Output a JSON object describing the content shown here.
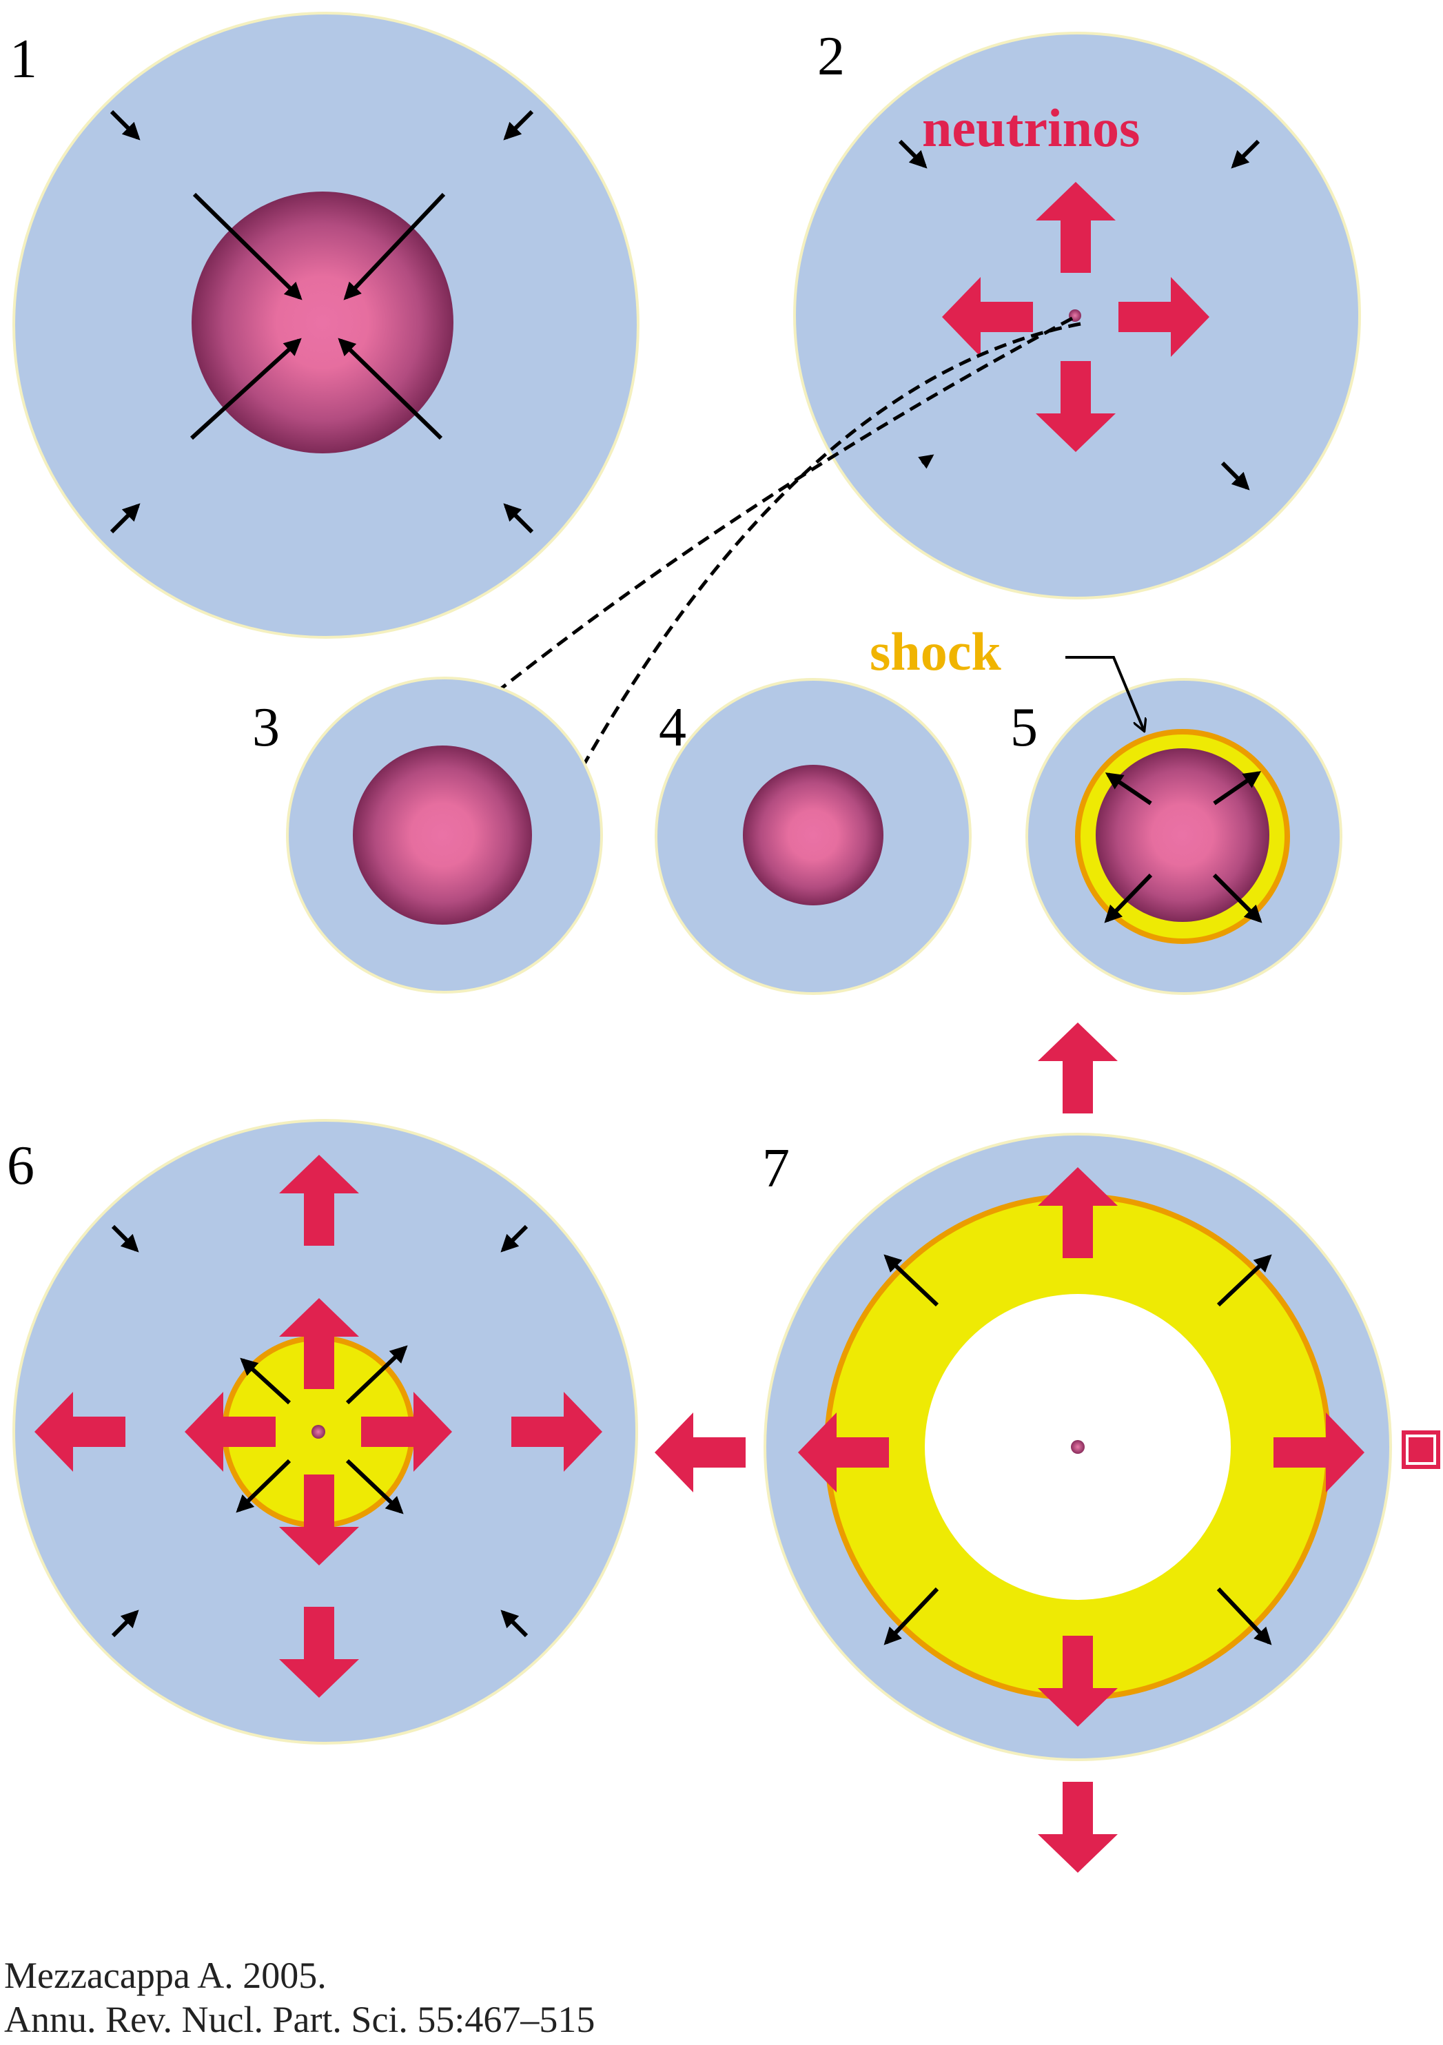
{
  "colors": {
    "envelope": "#b3c8e6",
    "envelope_edge": "#f4f0c0",
    "core_center": "#ea72a6",
    "core_edge": "#7e2a57",
    "neutrino_arrow": "#e0224f",
    "shock_fill": "#eeea04",
    "shock_edge": "#eb9c00",
    "shock_label": "#f0b400",
    "infall_arrow": "#000000"
  },
  "panels": [
    {
      "number": "1"
    },
    {
      "number": "2"
    },
    {
      "number": "3"
    },
    {
      "number": "4"
    },
    {
      "number": "5"
    },
    {
      "number": "6"
    },
    {
      "number": "7"
    }
  ],
  "labels": {
    "neutrinos": "neutrinos",
    "shock": "shock"
  },
  "citation": {
    "line1": "Mezzacappa A. 2005.",
    "line2": "Annu. Rev. Nucl. Part. Sci. 55:467–515"
  }
}
